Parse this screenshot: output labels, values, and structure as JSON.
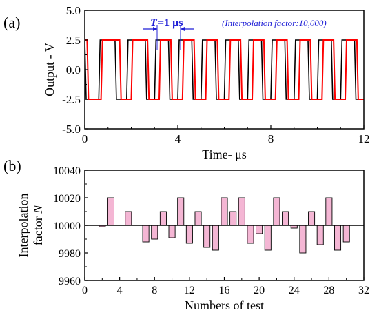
{
  "panels": {
    "a": {
      "label": "(a)"
    },
    "b": {
      "label": "(b)"
    }
  },
  "chart_data": [
    {
      "type": "line",
      "panel": "(a)",
      "xlabel": "Time- μs",
      "ylabel": "Output - V",
      "xlim": [
        0,
        12
      ],
      "ylim": [
        -5.0,
        5.0
      ],
      "x_ticks": [
        0,
        4,
        8,
        12
      ],
      "y_ticks": [
        "5.0",
        "2.5",
        "0.0",
        "-2.5",
        "-5.0"
      ],
      "annotations": {
        "period_T": "T",
        "period_eq": "=1 μs",
        "interpolation": "(Interpolation factor:10,000)"
      },
      "series": [
        {
          "color": "#000000",
          "high": 2.5,
          "low": -2.5,
          "transitions": [
            0.0,
            0.6,
            1.3,
            1.8,
            2.6,
            3.0,
            3.6,
            4.0,
            4.6,
            5.0,
            5.6,
            6.0,
            6.6,
            7.0,
            7.6,
            8.0,
            8.6,
            9.0,
            9.6,
            10.0,
            10.6,
            11.0,
            11.6,
            12.0
          ]
        },
        {
          "color": "#ff0000",
          "high": 2.5,
          "low": -2.5,
          "transitions": [
            0.1,
            0.7,
            1.5,
            2.0,
            2.7,
            3.2,
            3.7,
            4.2,
            4.7,
            5.2,
            5.7,
            6.2,
            6.7,
            7.2,
            7.7,
            8.2,
            8.7,
            9.2,
            9.7,
            10.2,
            10.7,
            11.2,
            11.7,
            12.0
          ]
        }
      ]
    },
    {
      "type": "bar",
      "panel": "(b)",
      "xlabel": "Numbers of test",
      "ylabel": "Interpolation factor N",
      "ylabel_line1": "Interpolation",
      "ylabel_line2_prefix": "factor",
      "ylabel_line2_var": "N",
      "baseline": 10000,
      "xlim": [
        0,
        32
      ],
      "ylim": [
        9960,
        10040
      ],
      "x_ticks": [
        0,
        4,
        8,
        12,
        16,
        20,
        24,
        28,
        32
      ],
      "y_ticks": [
        9960,
        9980,
        10000,
        10020,
        10040
      ],
      "bar_color": "#f4b6d4",
      "x": [
        2,
        3,
        5,
        7,
        8,
        9,
        10,
        11,
        12,
        13,
        14,
        15,
        16,
        17,
        18,
        19,
        20,
        21,
        22,
        23,
        24,
        25,
        26,
        27,
        28,
        29,
        30
      ],
      "values": [
        9999,
        10020,
        10010,
        9988,
        9990,
        10010,
        9991,
        10020,
        9987,
        10010,
        9984,
        9982,
        10020,
        10010,
        10020,
        9987,
        9994,
        9982,
        10020,
        10010,
        9998,
        9980,
        10010,
        9986,
        10020,
        9982,
        9988
      ]
    }
  ]
}
